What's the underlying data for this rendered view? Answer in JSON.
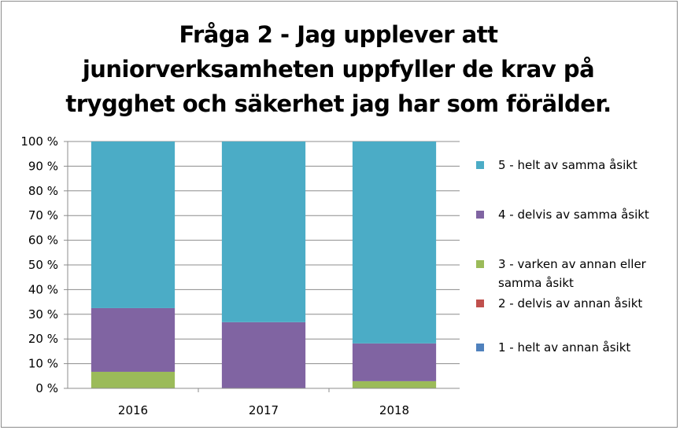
{
  "chart_data": {
    "type": "bar",
    "stacked": "percent",
    "title": "Fråga 2 - Jag upplever att juniorverksamheten uppfyller de krav på trygghet och säkerhet jag har som förälder.",
    "title_lines": [
      "Fråga 2 - Jag upplever att",
      "juniorverksamheten uppfyller de krav på",
      "trygghet och säkerhet jag har som förälder."
    ],
    "categories": [
      "2016",
      "2017",
      "2018"
    ],
    "y_ticks": [
      "0 %",
      "10 %",
      "20 %",
      "30 %",
      "40 %",
      "50 %",
      "60 %",
      "70 %",
      "80 %",
      "90 %",
      "100 %"
    ],
    "ylim": [
      0,
      100
    ],
    "grid": true,
    "legend_position": "right",
    "series": [
      {
        "name": "1 - helt av annan åsikt",
        "color": "#4f81bd",
        "values": [
          0,
          0,
          0
        ]
      },
      {
        "name": "2 - delvis av annan åsikt",
        "color": "#c0504d",
        "values": [
          0,
          0,
          0
        ]
      },
      {
        "name": "3 - varken av annan eller samma åsikt",
        "legend_lines": [
          "3 - varken av annan eller",
          "samma åsikt"
        ],
        "color": "#9bbb59",
        "values": [
          6.7,
          0,
          2.9
        ]
      },
      {
        "name": "4 - delvis av samma åsikt",
        "color": "#8064a2",
        "values": [
          25.8,
          26.8,
          15.3
        ]
      },
      {
        "name": "5 - helt av samma åsikt",
        "color": "#4bacc6",
        "values": [
          67.5,
          73.2,
          81.8
        ]
      }
    ]
  }
}
